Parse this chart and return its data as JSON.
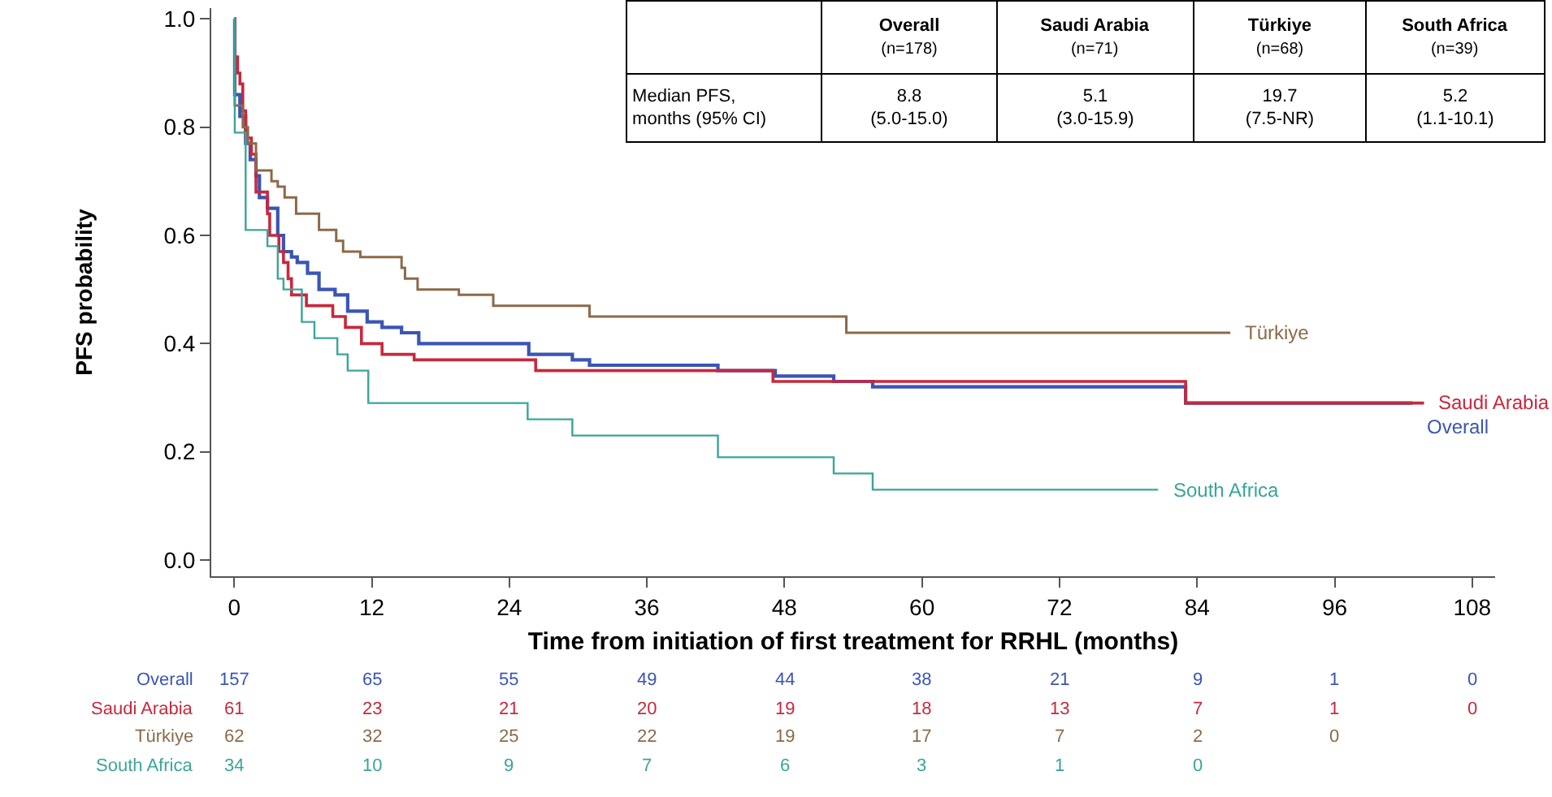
{
  "chart_data": {
    "type": "step",
    "xlabel": "Time from initiation of first treatment for RRHL (months)",
    "ylabel": "PFS probability",
    "xlim": [
      -2,
      110
    ],
    "xticks": [
      0,
      12,
      24,
      36,
      48,
      60,
      72,
      84,
      96,
      108
    ],
    "ylim": [
      -0.03,
      1.02
    ],
    "yticks": [
      {
        "value": 0,
        "label": "0.0"
      },
      0.2,
      0.4,
      0.6,
      0.8,
      {
        "value": 1,
        "label": "1.0"
      }
    ],
    "legend": false,
    "series": [
      {
        "name": "Overall",
        "color": "#3a55b4",
        "x": [
          0,
          0.05,
          0.5,
          1.0,
          1.4,
          1.9,
          2.2,
          2.9,
          3.8,
          4.3,
          5.0,
          5.5,
          6.4,
          7.4,
          8.8,
          9.9,
          11.6,
          12.9,
          14.6,
          16.1,
          25.7,
          29.5,
          31.0,
          42.2,
          47.2,
          52.3,
          55.7,
          83.0,
          102.8
        ],
        "values": [
          1.0,
          0.86,
          0.82,
          0.77,
          0.74,
          0.71,
          0.67,
          0.65,
          0.6,
          0.57,
          0.56,
          0.55,
          0.53,
          0.5,
          0.49,
          0.46,
          0.44,
          0.43,
          0.42,
          0.4,
          0.38,
          0.37,
          0.36,
          0.35,
          0.34,
          0.33,
          0.32,
          0.29,
          0.29
        ]
      },
      {
        "name": "Saudi Arabia",
        "color": "#c8283c",
        "x": [
          0,
          0.05,
          0.3,
          0.5,
          0.75,
          1.0,
          1.5,
          1.9,
          2.9,
          3.1,
          3.9,
          4.3,
          4.7,
          5.0,
          6.3,
          8.6,
          9.7,
          11.1,
          12.9,
          15.7,
          26.3,
          47.0,
          83.0,
          103.8
        ],
        "values": [
          1.0,
          0.93,
          0.9,
          0.88,
          0.83,
          0.78,
          0.75,
          0.68,
          0.64,
          0.6,
          0.57,
          0.55,
          0.52,
          0.49,
          0.47,
          0.45,
          0.43,
          0.4,
          0.38,
          0.37,
          0.35,
          0.33,
          0.29,
          0.29
        ]
      },
      {
        "name": "Türkiye",
        "color": "#8b6a4a",
        "x": [
          0,
          0.05,
          0.75,
          1.2,
          1.9,
          3.25,
          3.8,
          4.4,
          5.4,
          7.4,
          8.9,
          9.5,
          11,
          14.6,
          14.9,
          16,
          19.6,
          22.6,
          31,
          53.4,
          86.9
        ],
        "values": [
          1.0,
          0.84,
          0.8,
          0.77,
          0.72,
          0.7,
          0.69,
          0.67,
          0.64,
          0.61,
          0.59,
          0.57,
          0.56,
          0.54,
          0.52,
          0.5,
          0.49,
          0.47,
          0.45,
          0.42,
          0.42
        ]
      },
      {
        "name": "South Africa",
        "color": "#3aa59a",
        "x": [
          0,
          0.05,
          1.0,
          2.9,
          3.8,
          4.3,
          5.9,
          7.0,
          9.0,
          9.9,
          11.7,
          25.6,
          29.5,
          42.2,
          52.3,
          55.7,
          80.6
        ],
        "values": [
          1.0,
          0.79,
          0.61,
          0.58,
          0.52,
          0.5,
          0.44,
          0.41,
          0.38,
          0.35,
          0.29,
          0.26,
          0.23,
          0.19,
          0.16,
          0.13,
          0.13
        ]
      }
    ],
    "annotations": [
      "Overall\n(n=178)",
      "Saudi Arabia\n(n=71)",
      "Türkiye\n(n=68)",
      "South Africa\n(n=39)",
      "Median PFS,\nmonths (95% CI)",
      "8.8\n(5.0-15.0)",
      "5.1\n(3.0-15.9)",
      "19.7\n(7.5-NR)",
      "5.2\n(1.1-10.1)",
      "157 65 55 49 44 38 21 9 1 0",
      "61 23 21 20 19 18 13 7 1 0",
      "62 32 25 22 19 17 7 2 0",
      "34 10 9 7 6 3 1 0"
    ]
  }
}
